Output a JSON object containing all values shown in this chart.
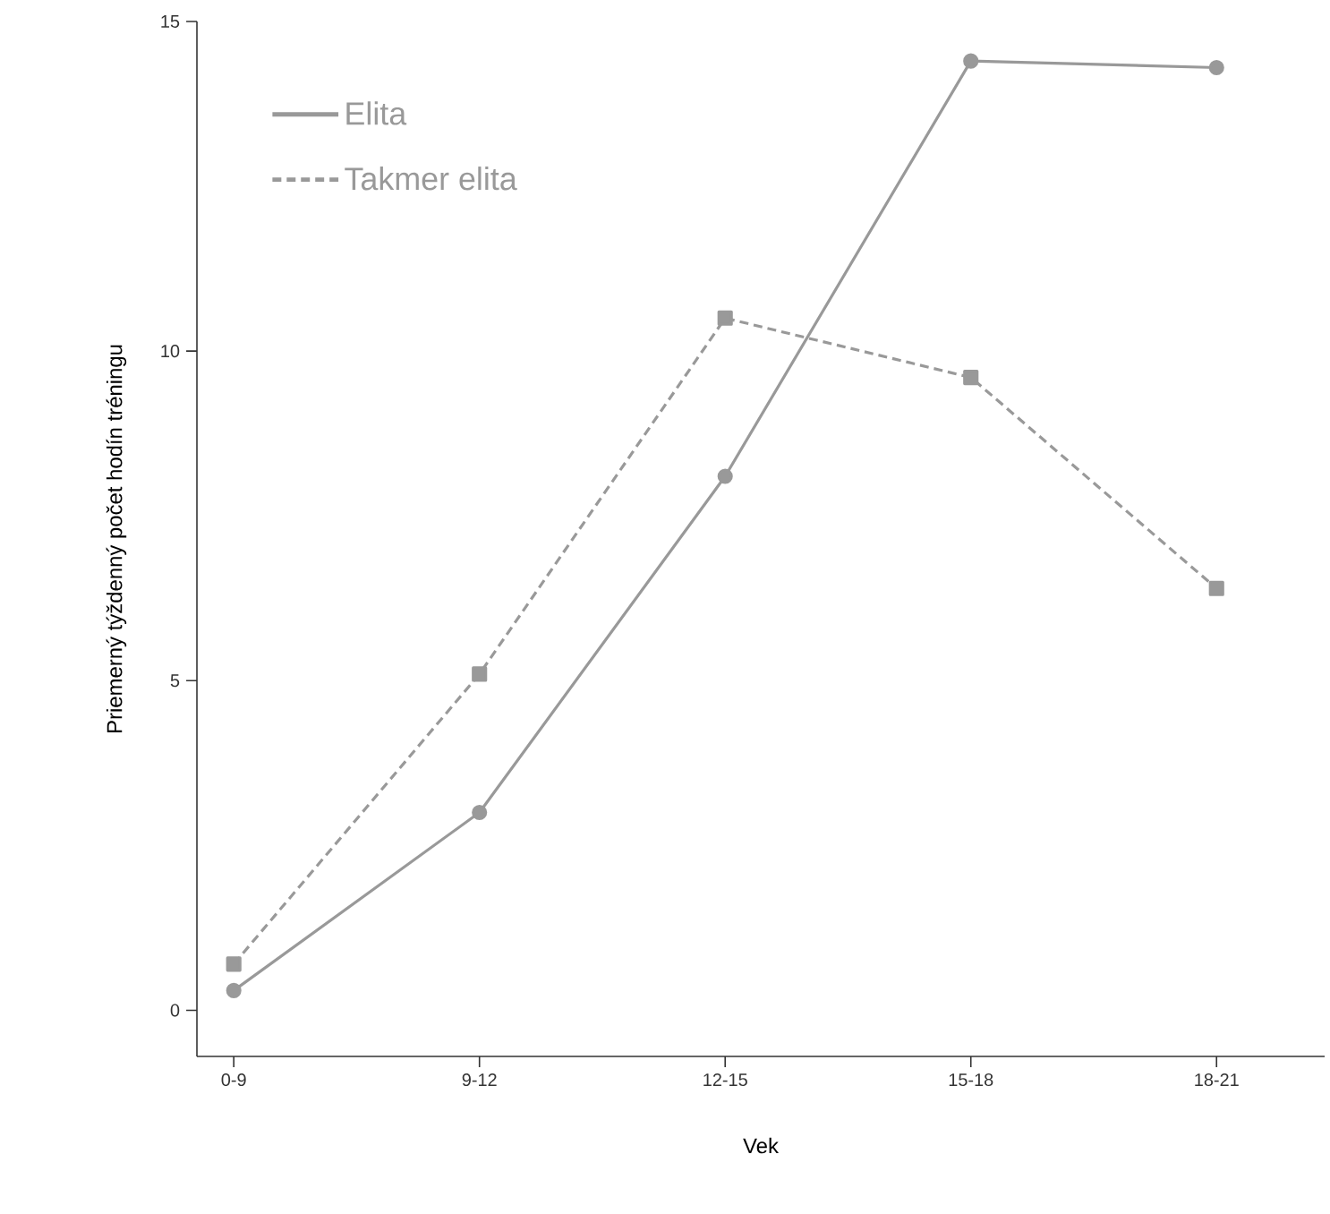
{
  "chart_data": {
    "type": "line",
    "xlabel": "Vek",
    "ylabel": "Priemerný týždenný počet hodín tréningu",
    "categories": [
      "0-9",
      "9-12",
      "12-15",
      "15-18",
      "18-21"
    ],
    "series": [
      {
        "name": "Elita",
        "color": "#999999",
        "values": [
          0.3,
          3.0,
          8.1,
          14.4,
          14.3
        ],
        "marker": "circle",
        "line_style": "solid"
      },
      {
        "name": "Takmer elita",
        "color": "#999999",
        "values": [
          0.7,
          5.1,
          10.5,
          9.6,
          6.4
        ],
        "marker": "square",
        "line_style": "dashed"
      }
    ],
    "ylim": [
      -0.7,
      15
    ],
    "yticks": [
      0,
      5,
      10,
      15
    ],
    "grid": false,
    "legend": "top left"
  }
}
